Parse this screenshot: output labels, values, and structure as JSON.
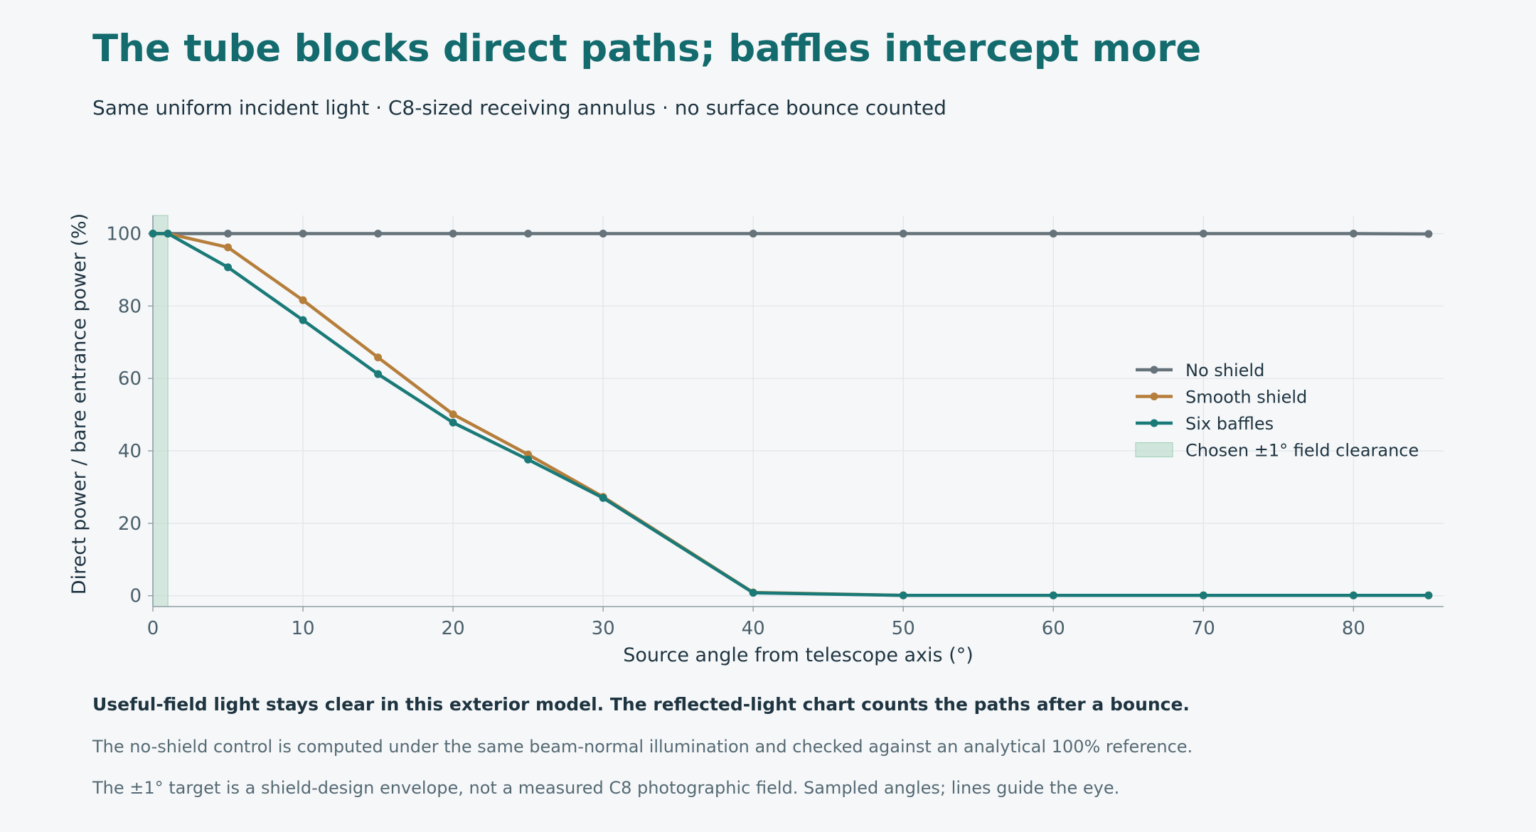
{
  "header": {
    "title": "The tube blocks direct paths; baffles intercept more",
    "subtitle": "Same uniform incident light · C8-sized receiving annulus · no surface bounce counted"
  },
  "notes": {
    "bold": "Useful-field light stays clear in this exterior model. The reflected-light chart counts the paths after a bounce.",
    "line1": "The no-shield control is computed under the same beam-normal illumination and checked against an analytical 100% reference.",
    "line2": "The ±1° target is a shield-design envelope, not a measured C8 photographic field. Sampled angles; lines guide the eye."
  },
  "chart_data": {
    "type": "line",
    "xlabel": "Source angle from telescope axis (°)",
    "ylabel": "Direct power / bare entrance power (%)",
    "xlim": [
      0,
      86
    ],
    "ylim": [
      -3,
      105
    ],
    "xticks": [
      0,
      10,
      20,
      30,
      40,
      50,
      60,
      70,
      80
    ],
    "yticks": [
      0,
      20,
      40,
      60,
      80,
      100
    ],
    "grid": true,
    "legend_position": "right",
    "x": [
      0,
      1,
      5,
      10,
      15,
      20,
      25,
      30,
      40,
      50,
      60,
      70,
      80,
      85
    ],
    "series": [
      {
        "name": "No shield",
        "color": "#66737b",
        "values": [
          100,
          100,
          100,
          100,
          100,
          100,
          100,
          100,
          100,
          100,
          100,
          100,
          100,
          99.9
        ]
      },
      {
        "name": "Smooth shield",
        "color": "#b67e3b",
        "values": [
          100,
          100,
          96.2,
          81.6,
          65.8,
          50.1,
          39.0,
          27.3,
          0.9,
          0.1,
          0.1,
          0.1,
          0.1,
          0.1
        ]
      },
      {
        "name": "Six baffles",
        "color": "#1a7a78",
        "values": [
          100,
          100,
          90.7,
          76.1,
          61.2,
          47.8,
          37.6,
          27.0,
          0.8,
          0.1,
          0.1,
          0.1,
          0.1,
          0.1
        ]
      }
    ],
    "band": {
      "name": "Chosen ±1° field clearance",
      "x0": 0,
      "x1": 1,
      "color": "#b8dbc9"
    }
  }
}
